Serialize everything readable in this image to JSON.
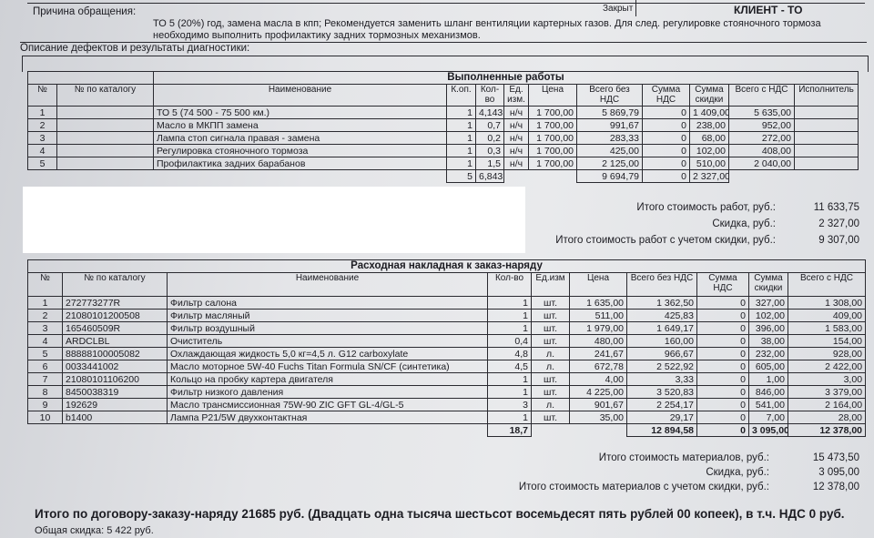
{
  "header": {
    "reason_label": "Причина обращения:",
    "reason_text_1": "ТО 5 (20%) год, замена масла в кпп;  Рекомендуется заменить шланг вентиляции картерных газов. Для след. регулировке стояночного тормоза",
    "reason_text_2": "необходимо выполнить профилактику задних тормозных механизмов.",
    "status_label": "Закрыт",
    "client_type": "КЛИЕНТ - ТО",
    "defects_label": "Описание дефектов и результаты диагностики:"
  },
  "works": {
    "title": "Выполненные работы",
    "columns": [
      "№",
      "№ по каталогу",
      "Наименование",
      "К.оп.",
      "Кол-во",
      "Ед. изм.",
      "Цена",
      "Всего без НДС",
      "Сумма НДС",
      "Сумма скидки",
      "Всего с НДС",
      "Исполнитель"
    ],
    "rows": [
      [
        "1",
        "",
        "ТО 5 (74 500 - 75 500 км.)",
        "1",
        "4,143",
        "н/ч",
        "1 700,00",
        "5 869,79",
        "0",
        "1 409,00",
        "5 635,00",
        ""
      ],
      [
        "2",
        "",
        "Масло в МКПП замена",
        "1",
        "0,7",
        "н/ч",
        "1 700,00",
        "991,67",
        "0",
        "238,00",
        "952,00",
        ""
      ],
      [
        "3",
        "",
        "Лампа стоп сигнала правая - замена",
        "1",
        "0,2",
        "н/ч",
        "1 700,00",
        "283,33",
        "0",
        "68,00",
        "272,00",
        ""
      ],
      [
        "4",
        "",
        "Регулировка стояночного тормоза",
        "1",
        "0,3",
        "н/ч",
        "1 700,00",
        "425,00",
        "0",
        "102,00",
        "408,00",
        ""
      ],
      [
        "5",
        "",
        "Профилактика задних барабанов",
        "1",
        "1,5",
        "н/ч",
        "1 700,00",
        "2 125,00",
        "0",
        "510,00",
        "2 040,00",
        ""
      ]
    ],
    "totals": {
      "kop": "5",
      "qty": "6,843",
      "no_vat": "9 694,79",
      "vat": "0",
      "discount": "2 327,00"
    },
    "summary": [
      {
        "label": "Итого стоимость работ, руб.:",
        "value": "11 633,75"
      },
      {
        "label": "Скидка, руб.:",
        "value": "2 327,00"
      },
      {
        "label": "Итого стоимость работ с учетом скидки, руб.:",
        "value": "9 307,00"
      }
    ]
  },
  "materials": {
    "title": "Расходная накладная к заказ-наряду",
    "columns": [
      "№",
      "№ по каталогу",
      "Наименование",
      "Кол-во",
      "Ед.изм",
      "Цена",
      "Всего без НДС",
      "Сумма НДС",
      "Сумма скидки",
      "Всего с НДС"
    ],
    "rows": [
      [
        "1",
        "272773277R",
        "Фильтр салона",
        "1",
        "шт.",
        "1 635,00",
        "1 362,50",
        "0",
        "327,00",
        "1 308,00"
      ],
      [
        "2",
        "21080101200508",
        "Фильтр масляный",
        "1",
        "шт.",
        "511,00",
        "425,83",
        "0",
        "102,00",
        "409,00"
      ],
      [
        "3",
        "165460509R",
        "Фильтр воздушный",
        "1",
        "шт.",
        "1 979,00",
        "1 649,17",
        "0",
        "396,00",
        "1 583,00"
      ],
      [
        "4",
        "ARDCLBL",
        "Очиститель",
        "0,4",
        "шт.",
        "480,00",
        "160,00",
        "0",
        "38,00",
        "154,00"
      ],
      [
        "5",
        "88888100005082",
        "Охлаждающая жидкость 5,0 кг=4,5 л. G12 carboxylate",
        "4,8",
        "л.",
        "241,67",
        "966,67",
        "0",
        "232,00",
        "928,00"
      ],
      [
        "6",
        "0033441002",
        "Масло моторное 5W-40 Fuchs Titan Formula SN/CF (синтетика)",
        "4,5",
        "л.",
        "672,78",
        "2 522,92",
        "0",
        "605,00",
        "2 422,00"
      ],
      [
        "7",
        "21080101106200",
        "Кольцо на пробку картера двигателя",
        "1",
        "шт.",
        "4,00",
        "3,33",
        "0",
        "1,00",
        "3,00"
      ],
      [
        "8",
        "8450038319",
        "Фильтр низкого давления",
        "1",
        "шт.",
        "4 225,00",
        "3 520,83",
        "0",
        "846,00",
        "3 379,00"
      ],
      [
        "9",
        "192629",
        "Масло трансмиссионная 75W-90 ZIC GFT GL-4/GL-5",
        "3",
        "л.",
        "901,67",
        "2 254,17",
        "0",
        "541,00",
        "2 164,00"
      ],
      [
        "10",
        "b1400",
        "Лампа P21/5W двухконтактная",
        "1",
        "шт.",
        "35,00",
        "29,17",
        "0",
        "7,00",
        "28,00"
      ]
    ],
    "totals": {
      "qty": "18,7",
      "no_vat": "12 894,58",
      "vat": "0",
      "discount": "3 095,00",
      "with_vat": "12 378,00"
    },
    "summary": [
      {
        "label": "Итого стоимость материалов, руб.:",
        "value": "15 473,50"
      },
      {
        "label": "Скидка, руб.:",
        "value": "3 095,00"
      },
      {
        "label": "Итого стоимость материалов с учетом скидки, руб.:",
        "value": "12 378,00"
      }
    ]
  },
  "footer": {
    "grand_total": "Итого по договору-заказу-наряду 21685 руб. (Двадцать одна тысяча шестьсот восемьдесят пять рублей 00 копеек), в т.ч. НДС 0 руб.",
    "total_discount": "Общая скидка: 5 422 руб."
  }
}
